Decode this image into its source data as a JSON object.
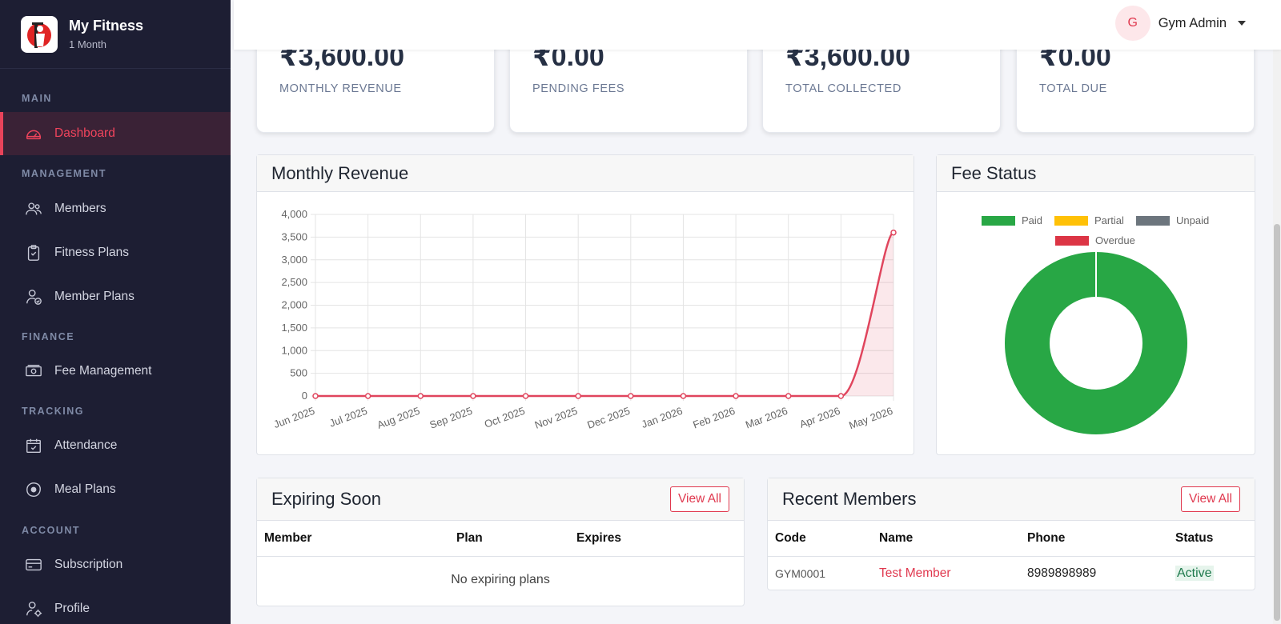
{
  "brand": {
    "name": "My Fitness",
    "plan": "1 Month"
  },
  "nav": {
    "sections": {
      "main": "MAIN",
      "management": "MANAGEMENT",
      "finance": "FINANCE",
      "tracking": "TRACKING",
      "account": "ACCOUNT"
    },
    "items": {
      "dashboard": "Dashboard",
      "members": "Members",
      "fitness_plans": "Fitness Plans",
      "member_plans": "Member Plans",
      "fee_management": "Fee Management",
      "attendance": "Attendance",
      "meal_plans": "Meal Plans",
      "subscription": "Subscription",
      "profile": "Profile"
    }
  },
  "user": {
    "initial": "G",
    "name": "Gym Admin"
  },
  "stats": [
    {
      "value": "₹3,600.00",
      "label": "MONTHLY REVENUE"
    },
    {
      "value": "₹0.00",
      "label": "PENDING FEES"
    },
    {
      "value": "₹3,600.00",
      "label": "TOTAL COLLECTED"
    },
    {
      "value": "₹0.00",
      "label": "TOTAL DUE"
    }
  ],
  "revenue_card": {
    "title": "Monthly Revenue"
  },
  "fee_card": {
    "title": "Fee Status"
  },
  "chart_data": [
    {
      "type": "line",
      "title": "",
      "xlabel": "",
      "ylabel": "",
      "categories": [
        "Jun 2025",
        "Jul 2025",
        "Aug 2025",
        "Sep 2025",
        "Oct 2025",
        "Nov 2025",
        "Dec 2025",
        "Jan 2026",
        "Feb 2026",
        "Mar 2026",
        "Apr 2026",
        "May 2026"
      ],
      "values": [
        0,
        0,
        0,
        0,
        0,
        0,
        0,
        0,
        0,
        0,
        0,
        3600
      ],
      "ylim": [
        0,
        4000
      ],
      "yticks": [
        "0",
        "500",
        "1,000",
        "1,500",
        "2,000",
        "2,500",
        "3,000",
        "3,500",
        "4,000"
      ],
      "grid": true,
      "filled": true,
      "color": "#e0455d"
    },
    {
      "type": "pie",
      "donut": true,
      "title": "",
      "labels": [
        "Paid",
        "Partial",
        "Unpaid",
        "Overdue"
      ],
      "values": [
        1,
        0,
        0,
        0
      ],
      "colors": [
        "#28a745",
        "#ffc107",
        "#6c757d",
        "#dc3545"
      ],
      "legend": "top"
    }
  ],
  "expiring": {
    "title": "Expiring Soon",
    "view_all": "View All",
    "columns": [
      "Member",
      "Plan",
      "Expires"
    ],
    "empty": "No expiring plans"
  },
  "recent": {
    "title": "Recent Members",
    "view_all": "View All",
    "columns": [
      "Code",
      "Name",
      "Phone",
      "Status"
    ],
    "rows": [
      {
        "code": "GYM0001",
        "name": "Test Member",
        "phone": "8989898989",
        "status": "Active"
      }
    ]
  }
}
